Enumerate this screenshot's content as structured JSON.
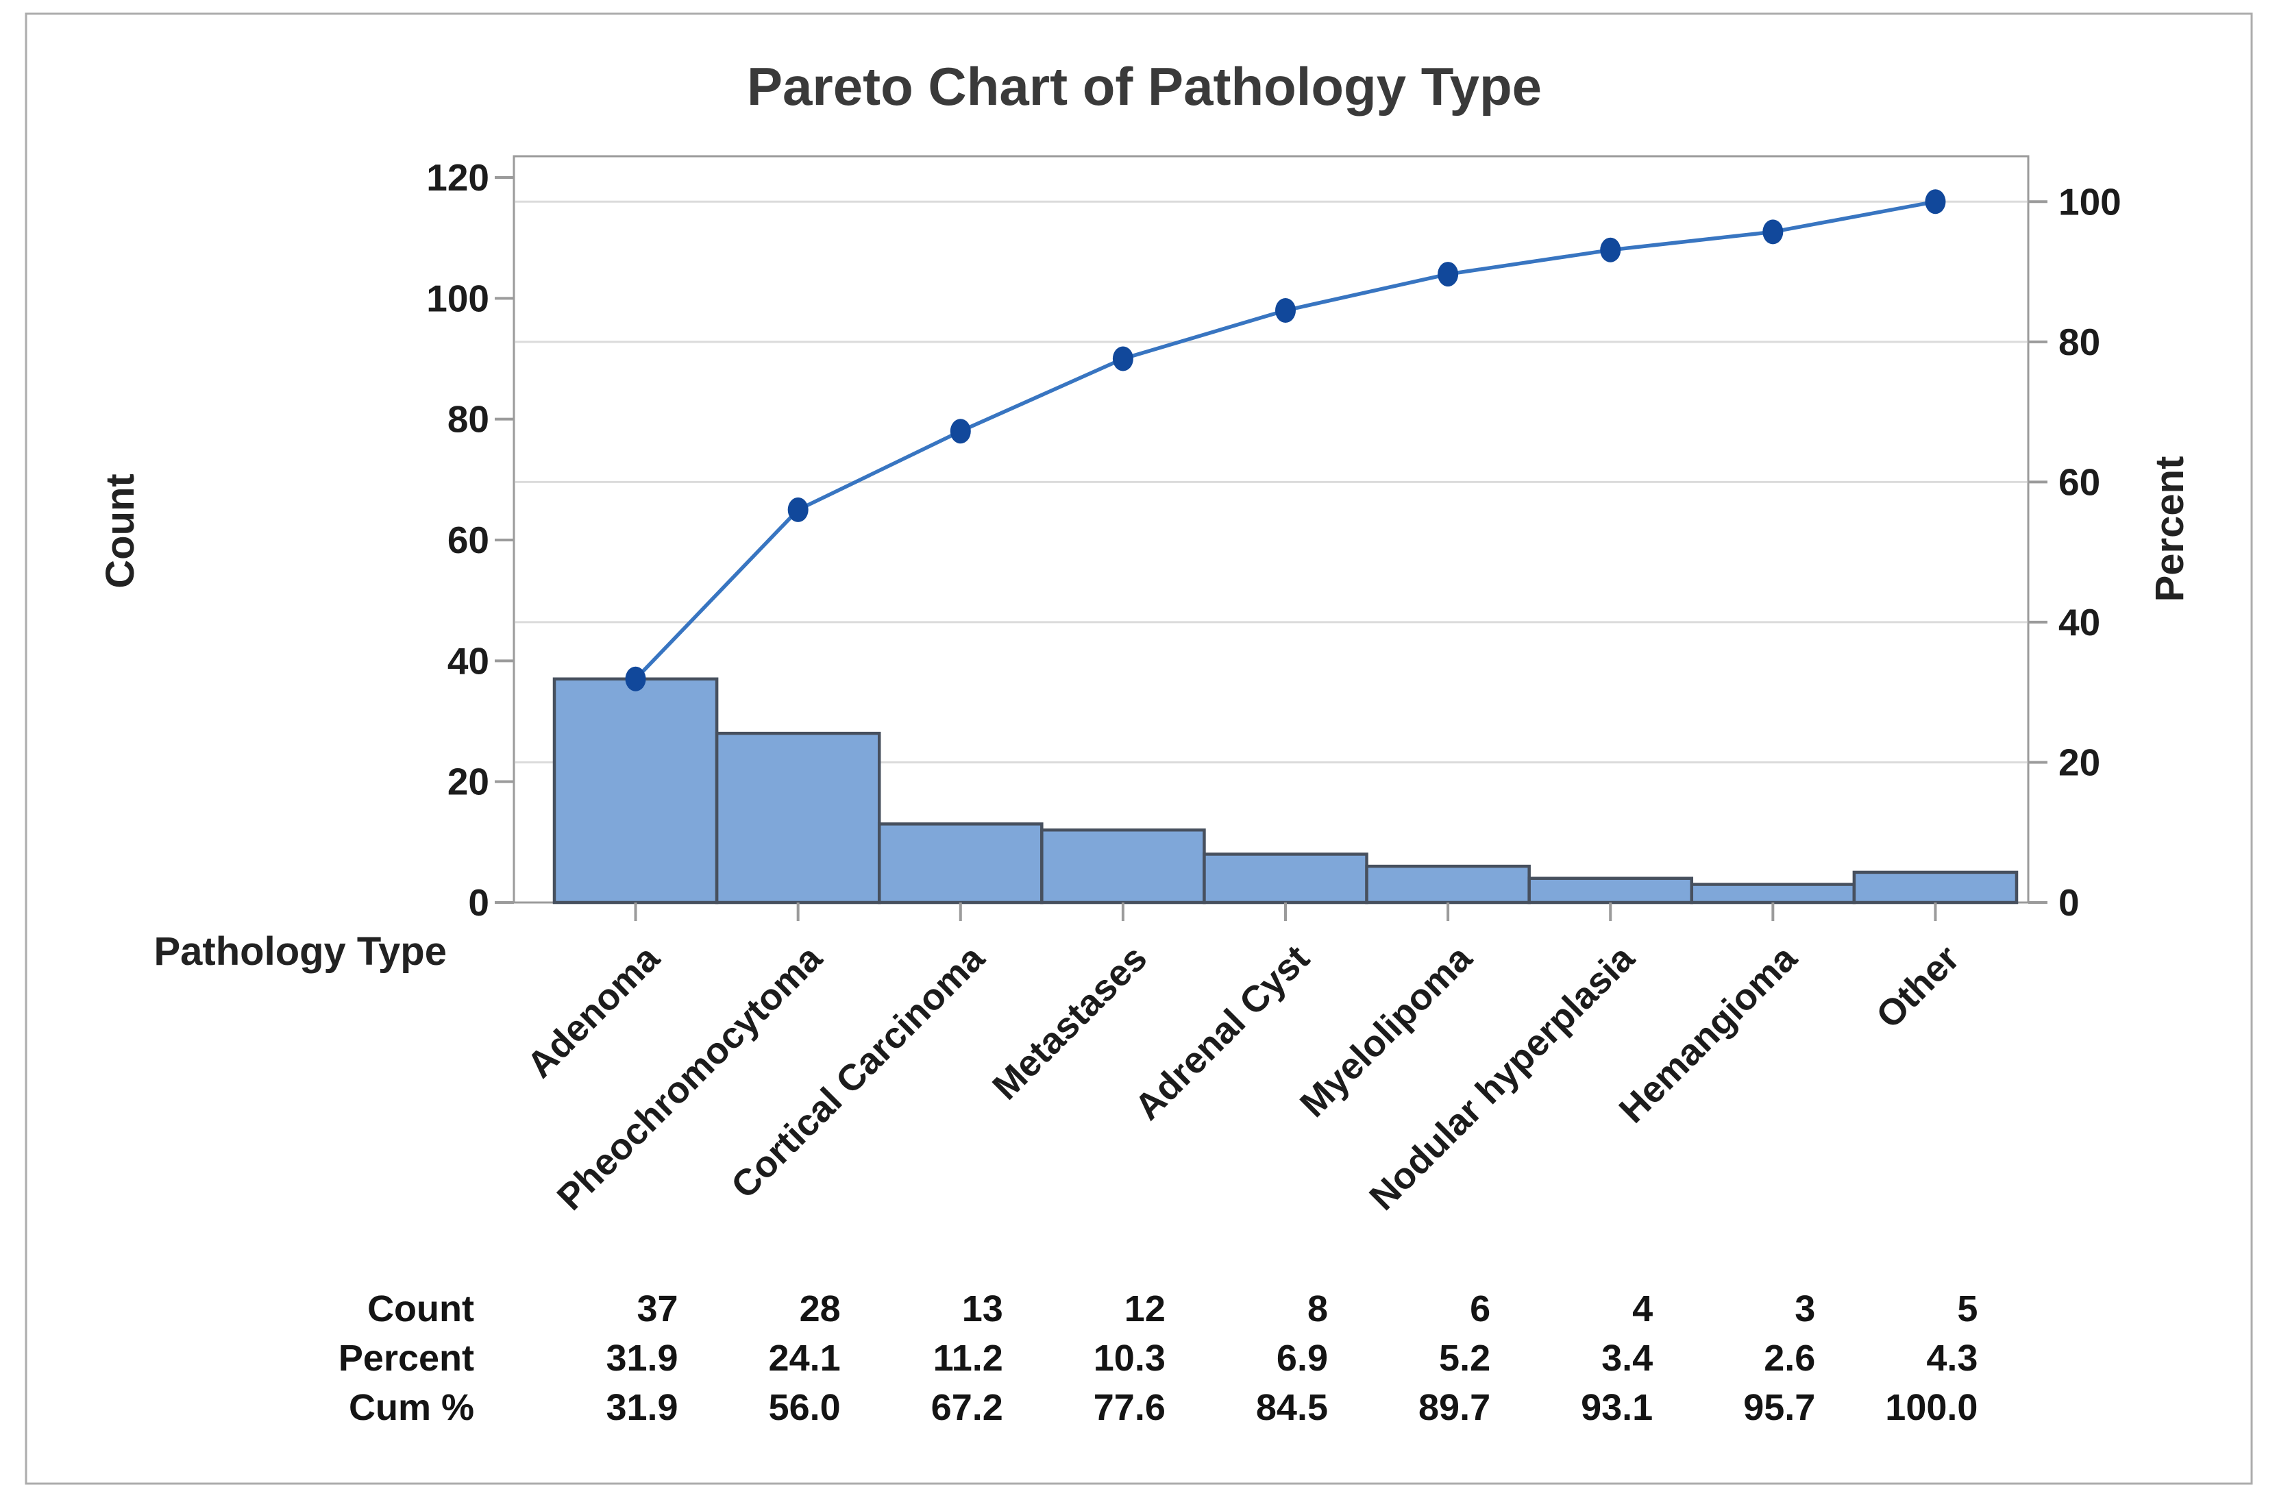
{
  "chart_data": {
    "type": "pareto",
    "base_types": [
      "bar",
      "line"
    ],
    "title": "Pareto Chart of Pathology Type",
    "categories": [
      "Adenoma",
      "Pheochromocytoma",
      "Cortical Carcinoma",
      "Metastases",
      "Adrenal Cyst",
      "Myelolipoma",
      "Nodular hyperplasia",
      "Hemangioma",
      "Other"
    ],
    "counts": [
      37,
      28,
      13,
      12,
      8,
      6,
      4,
      3,
      5
    ],
    "percents": [
      31.9,
      24.1,
      11.2,
      10.3,
      6.9,
      5.2,
      3.4,
      2.6,
      4.3
    ],
    "cum_percents": [
      31.9,
      56.0,
      67.2,
      77.6,
      84.5,
      89.7,
      93.1,
      95.7,
      100.0
    ],
    "cum_counts": [
      37,
      65,
      78,
      90,
      98,
      104,
      108,
      111,
      116
    ],
    "total_count": 116,
    "left_axis": {
      "label": "Count",
      "min": 0,
      "max": 120,
      "ticks": [
        0,
        20,
        40,
        60,
        80,
        100,
        120
      ]
    },
    "right_axis": {
      "label": "Percent",
      "min": 0,
      "max": 100,
      "ticks": [
        0,
        20,
        40,
        60,
        80,
        100
      ]
    },
    "x_axis": {
      "label": "Pathology Type"
    },
    "summary_table": {
      "row_labels": [
        "Count",
        "Percent",
        "Cum %"
      ]
    },
    "legend_position": "none",
    "grid": "horizontal gridlines aligned to percent-axis ticks",
    "colors": {
      "bar_fill": "#7FA7D9",
      "bar_border": "#47505E",
      "cum_line": "#3875C1",
      "cum_marker": "#11489B",
      "gridline": "#DBDBDB",
      "axis_frame": "#9B9B9B",
      "text": "#1C1C1C",
      "title_text": "#3A3A3A",
      "figure_border": "#ACACAC",
      "background": "#FFFFFF"
    }
  }
}
